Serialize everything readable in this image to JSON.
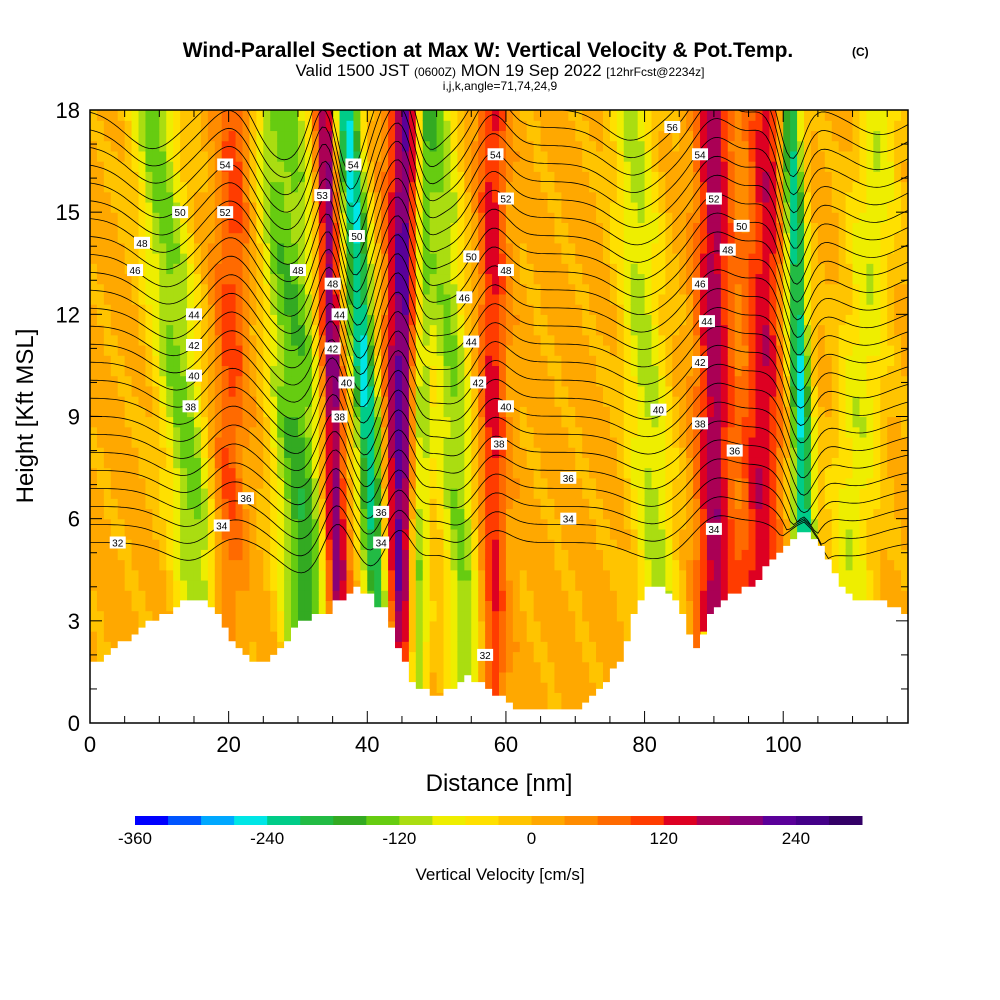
{
  "chart_data": {
    "type": "heatmap",
    "title": "Wind-Parallel Section at Max W: Vertical Velocity & Pot.Temp.",
    "title_mark": "(C)",
    "subtitle_main": "Valid 1500 JST",
    "subtitle_utc": "(0600Z)",
    "subtitle_date": "MON 19 Sep 2022",
    "subtitle_fcst": "[12hrFcst@2234z]",
    "subtitle_indices": "i,j,k,angle=71,74,24,9",
    "xlabel": "Distance [nm]",
    "ylabel": "Height [Kft MSL]",
    "xlim": [
      0,
      118
    ],
    "ylim": [
      0,
      18
    ],
    "xticks": [
      0,
      20,
      40,
      60,
      80,
      100
    ],
    "yticks": [
      0,
      3,
      6,
      9,
      12,
      15,
      18
    ],
    "xtick_labels": [
      "0",
      "20",
      "40",
      "60",
      "80",
      "100"
    ],
    "ytick_labels": [
      "0",
      "3",
      "6",
      "9",
      "12",
      "15",
      "18"
    ],
    "colorbar": {
      "label": "Vertical Velocity [cm/s]",
      "min": -360,
      "max": 300,
      "step": 30,
      "tick_values": [
        -360,
        -240,
        -120,
        0,
        120,
        240
      ],
      "tick_labels": [
        "-360",
        "-240",
        "-120",
        "0",
        "120",
        "240"
      ],
      "colors": [
        "#0000ff",
        "#0055ff",
        "#00a8ff",
        "#00e6e6",
        "#00cc88",
        "#22bb44",
        "#33aa22",
        "#66cc11",
        "#aadd11",
        "#eeee00",
        "#ffe000",
        "#ffc400",
        "#ffa800",
        "#ff8c00",
        "#ff6a00",
        "#ff3c00",
        "#dd0022",
        "#aa0055",
        "#880077",
        "#5a0099",
        "#440088",
        "#330066"
      ]
    },
    "terrain_kft": [
      [
        0,
        1.7
      ],
      [
        2,
        2.0
      ],
      [
        4,
        2.3
      ],
      [
        6,
        2.5
      ],
      [
        8,
        2.9
      ],
      [
        10,
        3.1
      ],
      [
        12,
        3.4
      ],
      [
        14,
        3.6
      ],
      [
        16,
        3.5
      ],
      [
        18,
        3.2
      ],
      [
        19,
        2.8
      ],
      [
        20,
        2.4
      ],
      [
        21,
        2.1
      ],
      [
        22,
        1.9
      ],
      [
        24,
        1.7
      ],
      [
        26,
        1.9
      ],
      [
        28,
        2.4
      ],
      [
        30,
        3.0
      ],
      [
        32,
        3.1
      ],
      [
        34,
        3.2
      ],
      [
        35,
        3.5
      ],
      [
        36,
        3.6
      ],
      [
        37,
        3.8
      ],
      [
        38,
        3.9
      ],
      [
        40,
        3.7
      ],
      [
        41,
        3.4
      ],
      [
        42,
        3.3
      ],
      [
        43,
        2.8
      ],
      [
        44,
        2.2
      ],
      [
        45,
        1.8
      ],
      [
        46,
        1.2
      ],
      [
        48,
        0.9
      ],
      [
        50,
        0.8
      ],
      [
        52,
        1.0
      ],
      [
        54,
        1.3
      ],
      [
        56,
        1.1
      ],
      [
        58,
        0.8
      ],
      [
        60,
        0.6
      ],
      [
        62,
        0.3
      ],
      [
        64,
        0.3
      ],
      [
        66,
        0.3
      ],
      [
        68,
        0.3
      ],
      [
        70,
        0.4
      ],
      [
        72,
        0.7
      ],
      [
        74,
        1.2
      ],
      [
        76,
        1.8
      ],
      [
        77,
        2.4
      ],
      [
        78,
        3.2
      ],
      [
        79,
        3.6
      ],
      [
        80,
        3.9
      ],
      [
        82,
        3.9
      ],
      [
        84,
        3.6
      ],
      [
        85,
        3.1
      ],
      [
        86,
        2.6
      ],
      [
        87,
        2.2
      ],
      [
        88,
        2.6
      ],
      [
        89,
        3.1
      ],
      [
        90,
        3.4
      ],
      [
        92,
        3.7
      ],
      [
        94,
        3.9
      ],
      [
        96,
        4.2
      ],
      [
        98,
        4.8
      ],
      [
        100,
        5.2
      ],
      [
        102,
        5.5
      ],
      [
        103,
        5.6
      ],
      [
        104,
        5.4
      ],
      [
        105,
        5.1
      ],
      [
        106,
        4.7
      ],
      [
        107,
        4.3
      ],
      [
        108,
        4.0
      ],
      [
        109,
        3.7
      ],
      [
        110,
        3.6
      ],
      [
        112,
        3.6
      ],
      [
        114,
        3.5
      ],
      [
        116,
        3.3
      ],
      [
        118,
        3.2
      ]
    ],
    "bands": [
      {
        "x_bottom": 18,
        "x_top": 9,
        "w": -140,
        "width": 3.5
      },
      {
        "x_bottom": 19,
        "x_top": 21,
        "w": 90,
        "width": 2.5
      },
      {
        "x_bottom": 31,
        "x_top": 26,
        "w": -130,
        "width": 2.8
      },
      {
        "x_bottom": 33,
        "x_top": 30,
        "w": -100,
        "width": 2.5
      },
      {
        "x_bottom": 36,
        "x_top": 34,
        "w": 200,
        "width": 1.6
      },
      {
        "x_bottom": 43,
        "x_top": 37,
        "w": -260,
        "width": 2.0
      },
      {
        "x_bottom": 44,
        "x_top": 46,
        "w": 230,
        "width": 2.6
      },
      {
        "x_bottom": 47,
        "x_top": 48,
        "w": -180,
        "width": 1.6
      },
      {
        "x_bottom": 55,
        "x_top": 50,
        "w": -130,
        "width": 2.8
      },
      {
        "x_bottom": 58,
        "x_top": 58,
        "w": 120,
        "width": 2.0
      },
      {
        "x_bottom": 83,
        "x_top": 78,
        "w": -110,
        "width": 3.2
      },
      {
        "x_bottom": 90,
        "x_top": 90,
        "w": 160,
        "width": 2.5
      },
      {
        "x_bottom": 104,
        "x_top": 101,
        "w": -260,
        "width": 1.6
      },
      {
        "x_bottom": 108,
        "x_top": 114,
        "w": -90,
        "width": 3.5
      },
      {
        "x_bottom": 96,
        "x_top": 98,
        "w": 130,
        "width": 3.0
      }
    ],
    "theta_contours": [
      32,
      33,
      34,
      35,
      36,
      37,
      38,
      39,
      40,
      41,
      42,
      43,
      44,
      45,
      46,
      47,
      48,
      49,
      50,
      51,
      52,
      53,
      54,
      55,
      56
    ],
    "contour_labels": [
      {
        "text": "32",
        "x": 4,
        "y": 5.3
      },
      {
        "text": "34",
        "x": 19,
        "y": 5.8
      },
      {
        "text": "36",
        "x": 22.5,
        "y": 6.6
      },
      {
        "text": "38",
        "x": 14.5,
        "y": 9.3
      },
      {
        "text": "40",
        "x": 15,
        "y": 10.2
      },
      {
        "text": "42",
        "x": 15,
        "y": 11.1
      },
      {
        "text": "44",
        "x": 15,
        "y": 12.0
      },
      {
        "text": "46",
        "x": 6.5,
        "y": 13.3
      },
      {
        "text": "48",
        "x": 7.5,
        "y": 14.1
      },
      {
        "text": "50",
        "x": 13,
        "y": 15.0
      },
      {
        "text": "52",
        "x": 19.5,
        "y": 15.0
      },
      {
        "text": "54",
        "x": 19.5,
        "y": 16.4
      },
      {
        "text": "48",
        "x": 30,
        "y": 13.3
      },
      {
        "text": "53",
        "x": 33.5,
        "y": 15.5
      },
      {
        "text": "54",
        "x": 38,
        "y": 16.4
      },
      {
        "text": "50",
        "x": 38.5,
        "y": 14.3
      },
      {
        "text": "48",
        "x": 35,
        "y": 12.9
      },
      {
        "text": "44",
        "x": 36,
        "y": 12.0
      },
      {
        "text": "42",
        "x": 35,
        "y": 11.0
      },
      {
        "text": "40",
        "x": 37,
        "y": 10.0
      },
      {
        "text": "38",
        "x": 36,
        "y": 9.0
      },
      {
        "text": "36",
        "x": 42,
        "y": 6.2
      },
      {
        "text": "34",
        "x": 42,
        "y": 5.3
      },
      {
        "text": "54",
        "x": 58.5,
        "y": 16.7
      },
      {
        "text": "52",
        "x": 60,
        "y": 15.4
      },
      {
        "text": "50",
        "x": 55,
        "y": 13.7
      },
      {
        "text": "48",
        "x": 60,
        "y": 13.3
      },
      {
        "text": "46",
        "x": 54,
        "y": 12.5
      },
      {
        "text": "44",
        "x": 55,
        "y": 11.2
      },
      {
        "text": "42",
        "x": 56,
        "y": 10.0
      },
      {
        "text": "40",
        "x": 60,
        "y": 9.3
      },
      {
        "text": "38",
        "x": 59,
        "y": 8.2
      },
      {
        "text": "36",
        "x": 69,
        "y": 7.2
      },
      {
        "text": "34",
        "x": 69,
        "y": 6.0
      },
      {
        "text": "32",
        "x": 57,
        "y": 2.0
      },
      {
        "text": "56",
        "x": 84,
        "y": 17.5
      },
      {
        "text": "54",
        "x": 88,
        "y": 16.7
      },
      {
        "text": "52",
        "x": 90,
        "y": 15.4
      },
      {
        "text": "50",
        "x": 94,
        "y": 14.6
      },
      {
        "text": "48",
        "x": 92,
        "y": 13.9
      },
      {
        "text": "46",
        "x": 88,
        "y": 12.9
      },
      {
        "text": "44",
        "x": 89,
        "y": 11.8
      },
      {
        "text": "42",
        "x": 88,
        "y": 10.6
      },
      {
        "text": "40",
        "x": 82,
        "y": 9.2
      },
      {
        "text": "38",
        "x": 88,
        "y": 8.8
      },
      {
        "text": "36",
        "x": 93,
        "y": 8.0
      },
      {
        "text": "34",
        "x": 90,
        "y": 5.7
      }
    ]
  }
}
